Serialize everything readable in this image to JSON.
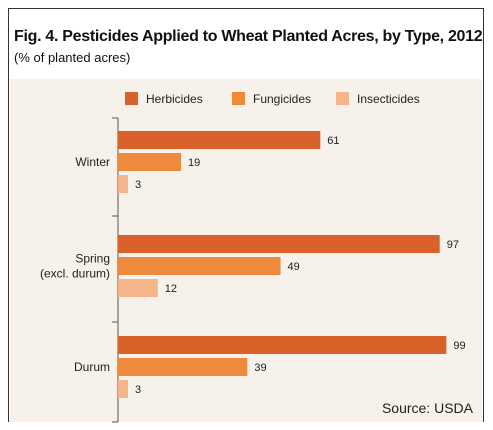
{
  "chart_data": {
    "type": "bar",
    "orientation": "horizontal",
    "title": "Fig. 4. Pesticides Applied to Wheat Planted Acres, by Type, 2012",
    "subtitle": "(% of planted acres)",
    "categories": [
      [
        "Winter"
      ],
      [
        "Spring",
        "(excl. durum)"
      ],
      [
        "Durum"
      ]
    ],
    "series": [
      {
        "name": "Herbicides",
        "values": [
          61,
          97,
          99
        ],
        "color": "#d9622b"
      },
      {
        "name": "Fungicides",
        "values": [
          19,
          49,
          39
        ],
        "color": "#ee8a3c"
      },
      {
        "name": "Insecticides",
        "values": [
          3,
          12,
          3
        ],
        "color": "#f6b48a"
      }
    ],
    "xlim": [
      0,
      100
    ],
    "legend_position": "top",
    "source": "Source: USDA"
  }
}
